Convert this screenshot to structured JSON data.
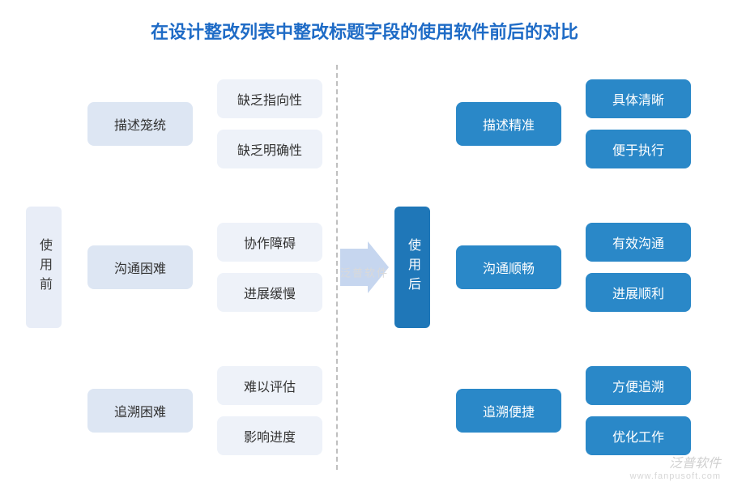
{
  "title": {
    "text": "在设计整改列表中整改标题字段的使用软件前后的对比",
    "color": "#1e6bc6",
    "fontsize": 22
  },
  "palette": {
    "before_root_bg": "#e8edf7",
    "before_root_fg": "#3b3b3b",
    "before_mid_bg": "#dde6f3",
    "before_mid_fg": "#333333",
    "before_leaf_bg": "#eef2f9",
    "before_leaf_fg": "#333333",
    "after_root_bg": "#1f77b8",
    "after_root_fg": "#ffffff",
    "after_mid_bg": "#2a88c8",
    "after_mid_fg": "#ffffff",
    "after_leaf_bg": "#2a88c8",
    "after_leaf_fg": "#ffffff",
    "arrow_color": "#c6d6ef",
    "divider_color": "#bfbfbf",
    "background": "#ffffff"
  },
  "arrow": {
    "body_w": 34,
    "body_h": 46,
    "head_w": 26,
    "head_h": 64
  },
  "before": {
    "root": "使用前",
    "groups": [
      {
        "mid": "描述笼统",
        "leaves": [
          "缺乏指向性",
          "缺乏明确性"
        ]
      },
      {
        "mid": "沟通困难",
        "leaves": [
          "协作障碍",
          "进展缓慢"
        ]
      },
      {
        "mid": "追溯困难",
        "leaves": [
          "难以评估",
          "影响进度"
        ]
      }
    ]
  },
  "after": {
    "root": "使用后",
    "groups": [
      {
        "mid": "描述精准",
        "leaves": [
          "具体清晰",
          "便于执行"
        ]
      },
      {
        "mid": "沟通顺畅",
        "leaves": [
          "有效沟通",
          "进展顺利"
        ]
      },
      {
        "mid": "追溯便捷",
        "leaves": [
          "方便追溯",
          "优化工作"
        ]
      }
    ]
  },
  "watermark": {
    "center": "泛普软件",
    "corner_top": "泛普软件",
    "corner_sub": "www.fanpusoft.com"
  }
}
